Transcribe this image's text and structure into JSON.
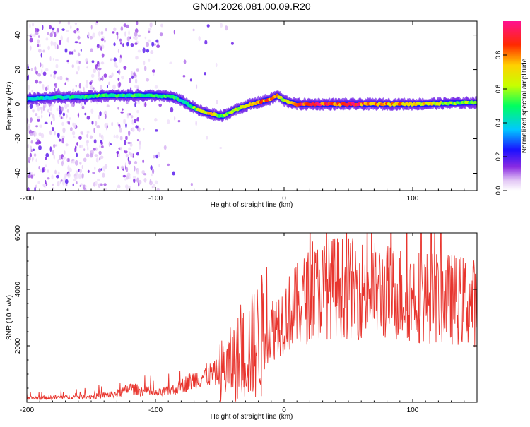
{
  "title": "GN04.2026.081.00.09.R20",
  "colors": {
    "line": "#e8352e",
    "axis": "#000000",
    "frame": "#000000"
  },
  "chart_data": [
    {
      "type": "heatmap",
      "title": "GN04.2026.081.00.09.R20",
      "xlabel": "Height of straight line (km)",
      "ylabel": "Frequency (Hz)",
      "xlim": [
        -200,
        150
      ],
      "ylim": [
        -50,
        48
      ],
      "xticks": [
        -200,
        -100,
        0,
        100
      ],
      "xtick_labels": [
        "-200",
        "-100",
        "0",
        "100"
      ],
      "yticks": [
        -40,
        -20,
        0,
        20,
        40
      ],
      "ytick_labels": [
        "-40",
        "-20",
        "0",
        "20",
        "40"
      ],
      "colorbar": {
        "label": "Normalized spectral amplitude",
        "range": [
          0,
          1
        ],
        "ticks": [
          0.0,
          0.2,
          0.4,
          0.6,
          0.8
        ],
        "tick_labels": [
          "0.0",
          "0.2",
          "0.4",
          "0.6",
          "0.8"
        ]
      },
      "ridge": {
        "x": [
          -200,
          -180,
          -160,
          -140,
          -120,
          -100,
          -85,
          -75,
          -65,
          -55,
          -48,
          -40,
          -30,
          -20,
          -10,
          -5,
          0,
          10,
          30,
          60,
          100,
          150
        ],
        "freq": [
          3,
          4,
          4,
          5,
          5,
          5,
          4,
          0,
          -4,
          -6,
          -7,
          -4,
          -1,
          1,
          3,
          5,
          2,
          0,
          0,
          0,
          0,
          1
        ],
        "amplitude": [
          0.4,
          0.45,
          0.5,
          0.55,
          0.5,
          0.55,
          0.5,
          0.45,
          0.7,
          0.7,
          0.55,
          0.6,
          0.75,
          0.8,
          0.85,
          0.75,
          0.65,
          0.9,
          0.95,
          0.9,
          0.75,
          0.55
        ]
      }
    },
    {
      "type": "line",
      "xlabel": "Height of straight line (km)",
      "ylabel": "SNR (10 * v/v)",
      "xlim": [
        -200,
        150
      ],
      "ylim": [
        0,
        6000
      ],
      "xticks": [
        -200,
        -100,
        0,
        100
      ],
      "xtick_labels": [
        "-200",
        "-100",
        "0",
        "100"
      ],
      "yticks": [
        2000,
        4000,
        6000
      ],
      "ytick_labels": [
        "2000",
        "4000",
        "6000"
      ],
      "series": [
        {
          "name": "SNR",
          "envelope_x": [
            -200,
            -150,
            -130,
            -120,
            -100,
            -85,
            -75,
            -65,
            -55,
            -45,
            -40,
            -35,
            -30,
            -20,
            -10,
            0,
            10,
            20,
            30,
            40,
            60,
            80,
            100,
            120,
            140,
            150
          ],
          "envelope_y": [
            150,
            200,
            300,
            500,
            300,
            450,
            700,
            900,
            1000,
            1200,
            1400,
            1600,
            1800,
            2200,
            2600,
            3000,
            3400,
            3800,
            4000,
            4100,
            4000,
            3900,
            3800,
            3700,
            3600,
            3500
          ]
        }
      ]
    }
  ]
}
